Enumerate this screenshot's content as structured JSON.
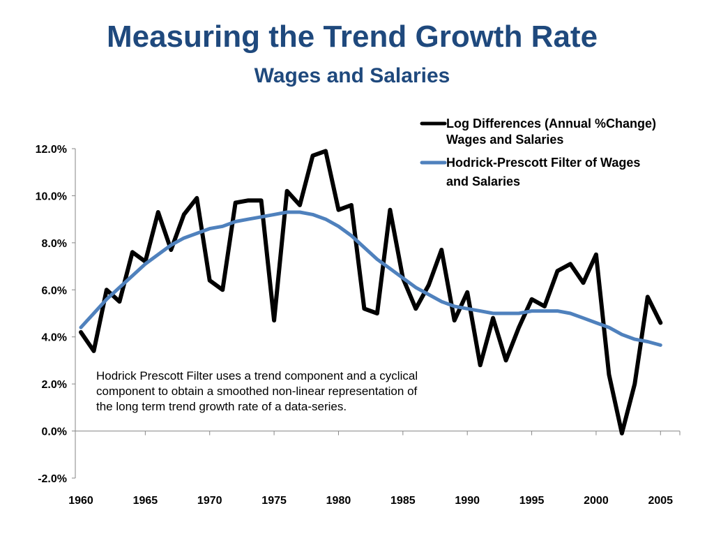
{
  "chart_data": {
    "type": "line",
    "title": "Measuring the Trend Growth Rate",
    "subtitle": "Wages and Salaries",
    "xlabel": "",
    "ylabel": "",
    "xlim": [
      1960,
      2005
    ],
    "ylim": [
      -2.0,
      12.0
    ],
    "y_ticks": [
      "-2.0%",
      "0.0%",
      "2.0%",
      "4.0%",
      "6.0%",
      "8.0%",
      "10.0%",
      "12.0%"
    ],
    "x_ticks": [
      "1960",
      "1965",
      "1970",
      "1975",
      "1980",
      "1985",
      "1990",
      "1995",
      "2000",
      "2005"
    ],
    "grid": false,
    "legend_position": "top-right",
    "series": [
      {
        "name": "Log Differences (Annual %Change) Wages and Salaries",
        "legend_lines": [
          "Log Differences (Annual %Change)",
          "Wages and Salaries"
        ],
        "color": "#000000",
        "x": [
          1960,
          1961,
          1962,
          1963,
          1964,
          1965,
          1966,
          1967,
          1968,
          1969,
          1970,
          1971,
          1972,
          1973,
          1974,
          1975,
          1976,
          1977,
          1978,
          1979,
          1980,
          1981,
          1982,
          1983,
          1984,
          1985,
          1986,
          1987,
          1988,
          1989,
          1990,
          1991,
          1992,
          1993,
          1994,
          1995,
          1996,
          1997,
          1998,
          1999,
          2000,
          2001,
          2002,
          2003,
          2004,
          2005
        ],
        "y": [
          4.2,
          3.4,
          6.0,
          5.5,
          7.6,
          7.2,
          9.3,
          7.7,
          9.2,
          9.9,
          6.4,
          6.0,
          9.7,
          9.8,
          9.8,
          4.7,
          10.2,
          9.6,
          11.7,
          11.9,
          9.4,
          9.6,
          5.2,
          5.0,
          9.4,
          6.5,
          5.2,
          6.2,
          7.7,
          4.7,
          5.9,
          2.8,
          4.8,
          3.0,
          4.4,
          5.6,
          5.3,
          6.8,
          7.1,
          6.3,
          7.5,
          2.4,
          -0.1,
          2.0,
          5.7,
          4.6
        ]
      },
      {
        "name": "Hodrick-Prescott Filter of Wages and Salaries",
        "legend_lines": [
          "Hodrick-Prescott Filter of Wages",
          "and Salaries"
        ],
        "color": "#4f81bd",
        "x": [
          1960,
          1961,
          1962,
          1963,
          1964,
          1965,
          1966,
          1967,
          1968,
          1969,
          1970,
          1971,
          1972,
          1973,
          1974,
          1975,
          1976,
          1977,
          1978,
          1979,
          1980,
          1981,
          1982,
          1983,
          1984,
          1985,
          1986,
          1987,
          1988,
          1989,
          1990,
          1991,
          1992,
          1993,
          1994,
          1995,
          1996,
          1997,
          1998,
          1999,
          2000,
          2001,
          2002,
          2003,
          2004,
          2005
        ],
        "y": [
          4.4,
          5.0,
          5.6,
          6.1,
          6.6,
          7.1,
          7.5,
          7.9,
          8.2,
          8.4,
          8.6,
          8.7,
          8.9,
          9.0,
          9.1,
          9.2,
          9.3,
          9.3,
          9.2,
          9.0,
          8.7,
          8.3,
          7.8,
          7.3,
          6.9,
          6.5,
          6.1,
          5.8,
          5.5,
          5.3,
          5.2,
          5.1,
          5.0,
          5.0,
          5.0,
          5.1,
          5.1,
          5.1,
          5.0,
          4.8,
          4.6,
          4.4,
          4.1,
          3.9,
          3.8,
          3.65
        ]
      }
    ],
    "annotation": [
      "Hodrick Prescott Filter uses a trend component and a cyclical",
      "component  to obtain a smoothed non-linear representation of",
      "the long term trend growth rate of a data-series."
    ]
  }
}
